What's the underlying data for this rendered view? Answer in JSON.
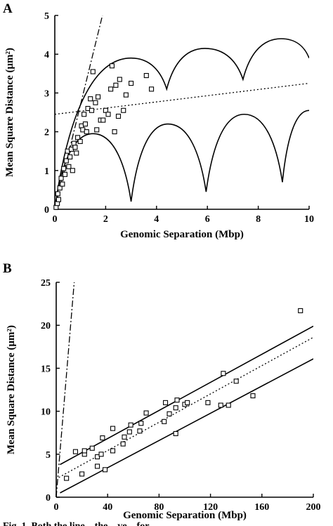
{
  "chart_data": [
    {
      "panel": "A",
      "type": "scatter",
      "xlabel": "Genomic Separation (Mbp)",
      "ylabel": "Mean Square Distance (μm²)",
      "xlim": [
        0,
        10
      ],
      "ylim": [
        0,
        5
      ],
      "xticks": [
        "0",
        "2",
        "4",
        "6",
        "8",
        "10"
      ],
      "yticks": [
        "0",
        "1",
        "2",
        "3",
        "4",
        "5"
      ],
      "points": [
        [
          0.05,
          0.05
        ],
        [
          0.1,
          0.15
        ],
        [
          0.12,
          0.4
        ],
        [
          0.15,
          0.25
        ],
        [
          0.2,
          0.55
        ],
        [
          0.25,
          0.8
        ],
        [
          0.3,
          0.65
        ],
        [
          0.35,
          1.05
        ],
        [
          0.4,
          0.9
        ],
        [
          0.45,
          1.25
        ],
        [
          0.5,
          1.5
        ],
        [
          0.55,
          1.1
        ],
        [
          0.6,
          1.35
        ],
        [
          0.65,
          1.55
        ],
        [
          0.7,
          1.0
        ],
        [
          0.75,
          1.7
        ],
        [
          0.8,
          1.6
        ],
        [
          0.85,
          1.45
        ],
        [
          0.9,
          1.85
        ],
        [
          1.0,
          1.75
        ],
        [
          1.05,
          2.15
        ],
        [
          1.1,
          2.05
        ],
        [
          1.15,
          2.45
        ],
        [
          1.2,
          2.2
        ],
        [
          1.25,
          2.0
        ],
        [
          1.3,
          2.6
        ],
        [
          1.4,
          2.85
        ],
        [
          1.45,
          2.55
        ],
        [
          1.5,
          3.55
        ],
        [
          1.6,
          2.75
        ],
        [
          1.65,
          2.05
        ],
        [
          1.7,
          2.9
        ],
        [
          1.8,
          2.3
        ],
        [
          1.9,
          2.3
        ],
        [
          2.0,
          2.55
        ],
        [
          2.1,
          2.45
        ],
        [
          2.2,
          3.1
        ],
        [
          2.25,
          3.7
        ],
        [
          2.35,
          2.0
        ],
        [
          2.4,
          3.2
        ],
        [
          2.5,
          2.4
        ],
        [
          2.55,
          3.35
        ],
        [
          2.7,
          2.55
        ],
        [
          2.8,
          2.95
        ],
        [
          3.0,
          3.25
        ],
        [
          3.6,
          3.45
        ],
        [
          3.8,
          3.1
        ]
      ],
      "lines": [
        {
          "style": "dash-dot",
          "kind": "linear",
          "intercept": 0,
          "slope": 2.67,
          "x_end": 1.9
        },
        {
          "style": "dotted",
          "kind": "linear",
          "intercept": 2.45,
          "slope": 0.08,
          "x_end": 10
        },
        {
          "style": "solid",
          "kind": "upper-envelope",
          "start": [
            0,
            0
          ],
          "peak": [
            3.0,
            3.9
          ],
          "cusps": [
            [
              4.4,
              3.1
            ],
            [
              7.4,
              3.35
            ]
          ],
          "bumps": [
            [
              5.9,
              4.15
            ],
            [
              8.9,
              4.4
            ]
          ],
          "end": [
            10,
            3.9
          ]
        },
        {
          "style": "solid",
          "kind": "lower-envelope",
          "start": [
            0,
            0
          ],
          "peak": [
            1.5,
            1.95
          ],
          "cusps": [
            [
              3.0,
              0.2
            ],
            [
              5.95,
              0.45
            ],
            [
              8.95,
              0.7
            ]
          ],
          "bumps": [
            [
              4.45,
              2.2
            ],
            [
              7.45,
              2.45
            ]
          ],
          "end": [
            10,
            2.55
          ]
        }
      ]
    },
    {
      "panel": "B",
      "type": "scatter",
      "xlabel": "Genomic Separation (Mbp)",
      "ylabel": "Mean Square Distance (μm²)",
      "xlim": [
        0,
        200
      ],
      "ylim": [
        0,
        25
      ],
      "xticks": [
        "0",
        "40",
        "80",
        "120",
        "160",
        "200"
      ],
      "yticks": [
        "0",
        "5",
        "10",
        "15",
        "20",
        "25"
      ],
      "points": [
        [
          8,
          2.2
        ],
        [
          15,
          5.3
        ],
        [
          20,
          2.7
        ],
        [
          22,
          5.0
        ],
        [
          22,
          5.4
        ],
        [
          28,
          5.7
        ],
        [
          32,
          4.7
        ],
        [
          32,
          3.6
        ],
        [
          35,
          5.0
        ],
        [
          36,
          6.9
        ],
        [
          38,
          3.2
        ],
        [
          44,
          8.0
        ],
        [
          44,
          5.4
        ],
        [
          52,
          6.2
        ],
        [
          53,
          7.0
        ],
        [
          57,
          7.6
        ],
        [
          58,
          8.4
        ],
        [
          65,
          7.7
        ],
        [
          66,
          8.6
        ],
        [
          70,
          9.8
        ],
        [
          84,
          8.8
        ],
        [
          85,
          11.0
        ],
        [
          88,
          9.7
        ],
        [
          93,
          7.4
        ],
        [
          93,
          10.4
        ],
        [
          94,
          11.3
        ],
        [
          100,
          10.8
        ],
        [
          102,
          11.0
        ],
        [
          118,
          11.0
        ],
        [
          128,
          10.7
        ],
        [
          130,
          14.4
        ],
        [
          134,
          10.7
        ],
        [
          140,
          13.5
        ],
        [
          153,
          11.8
        ],
        [
          190,
          21.7
        ]
      ],
      "lines": [
        {
          "style": "dash-dot",
          "kind": "linear",
          "start": [
            0,
            0
          ],
          "end": [
            14,
            25
          ]
        },
        {
          "style": "dotted",
          "kind": "linear",
          "start": [
            2,
            2.3
          ],
          "end": [
            200,
            18.6
          ]
        },
        {
          "style": "solid",
          "kind": "linear",
          "start": [
            3,
            3.8
          ],
          "end": [
            200,
            19.9
          ]
        },
        {
          "style": "solid",
          "kind": "linear",
          "start": [
            3,
            0.5
          ],
          "end": [
            200,
            16.1
          ]
        }
      ]
    }
  ],
  "caption_fragment": "Fig. 1. Both the line... the ...ve... for ..."
}
